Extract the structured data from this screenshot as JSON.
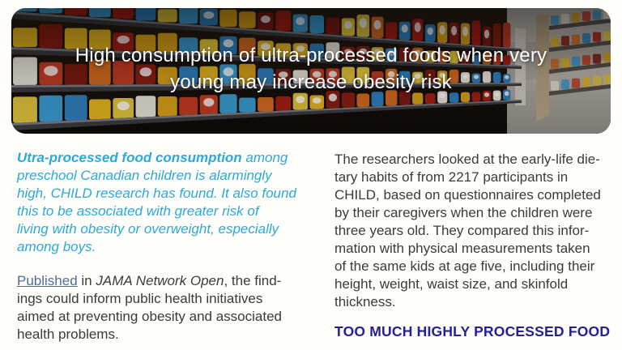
{
  "colors": {
    "accent_cyan": "#2ba9db",
    "link_blue": "#4d6e94",
    "heading_navy": "#23219a",
    "body_text": "#3b3b3b",
    "page_bg": "#fffefb"
  },
  "hero": {
    "title_lines": [
      "High consumption of ultra-processed foods when very",
      "young may increase obesity risk"
    ]
  },
  "article": {
    "left_column": {
      "lead_paragraph_lines": [
        [
          {
            "t": "Utra-processed food consumption",
            "s": "bold"
          },
          {
            "t": " among"
          }
        ],
        "preschool Canadian children is alarmingly",
        "high, CHILD research has found. It also found",
        "this to be associated with greater risk of",
        "living with obesity or overweight, especially",
        "among boys."
      ],
      "second_paragraph_lines": [
        [
          {
            "t": "Published",
            "s": "link"
          },
          {
            "t": " in "
          },
          {
            "t": "JAMA Network Open",
            "s": "italic"
          },
          {
            "t": ", the find-"
          }
        ],
        "ings could inform public health initiatives",
        "aimed at preventing obesity and associated",
        "health problems."
      ]
    },
    "right_column": {
      "paragraph_lines": [
        "The researchers looked at the early-life die-",
        "tary habits of from 2217 participants in",
        "CHILD, based on questionnaires completed",
        "by their caregivers when the children were",
        "three years old. They compared this infor-",
        "mation with physical measurements taken",
        "of the same kids at age five, including their",
        "height, weight, waist size, and skinfold",
        "thickness."
      ],
      "section_heading": "TOO MUCH HIGHLY PROCESSED FOOD"
    }
  }
}
